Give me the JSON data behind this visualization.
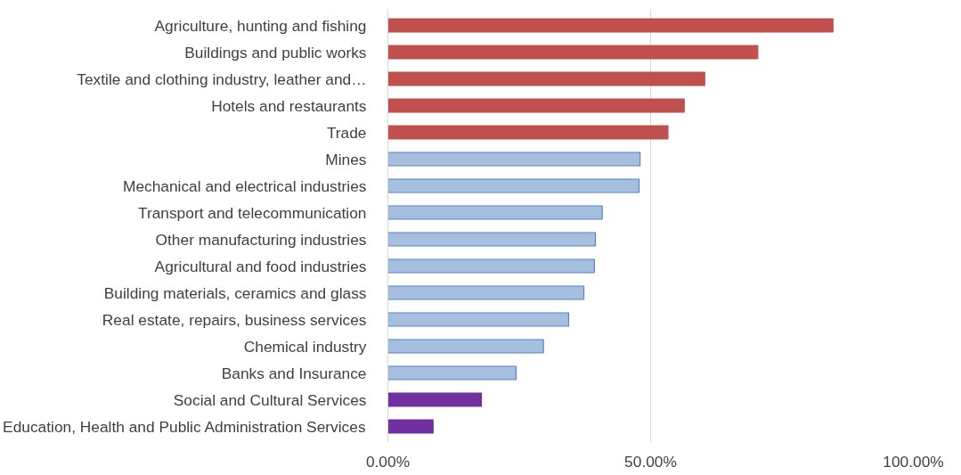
{
  "chart_data": {
    "type": "bar",
    "orientation": "horizontal",
    "categories": [
      "Agriculture, hunting and fishing",
      "Buildings and public works",
      "Textile and clothing industry, leather and…",
      "Hotels and restaurants",
      "Trade",
      "Mines",
      "Mechanical and electrical industries",
      "Transport and telecommunication",
      "Other manufacturing industries",
      "Agricultural and food industries",
      "Building materials, ceramics and glass",
      "Real estate, repairs, business services",
      "Chemical industry",
      "Banks and Insurance",
      "Social and Cultural Services",
      "Education, Health and Public Administration Services"
    ],
    "values": [
      84.7,
      70.4,
      60.3,
      56.4,
      53.3,
      48.0,
      47.8,
      40.8,
      39.5,
      39.3,
      37.3,
      34.4,
      29.6,
      24.4,
      17.8,
      8.6
    ],
    "colors": [
      "#c0504d",
      "#c0504d",
      "#c0504d",
      "#c0504d",
      "#c0504d",
      "#a7bfde",
      "#a7bfde",
      "#a7bfde",
      "#a7bfde",
      "#a7bfde",
      "#a7bfde",
      "#a7bfde",
      "#a7bfde",
      "#a7bfde",
      "#7030a0",
      "#7030a0"
    ],
    "xlim": [
      0,
      100
    ],
    "xticks": [
      {
        "value": 0,
        "label": "0.00%"
      },
      {
        "value": 50,
        "label": "50.00%"
      },
      {
        "value": 100,
        "label": "100.00%"
      }
    ],
    "grid": "x"
  }
}
